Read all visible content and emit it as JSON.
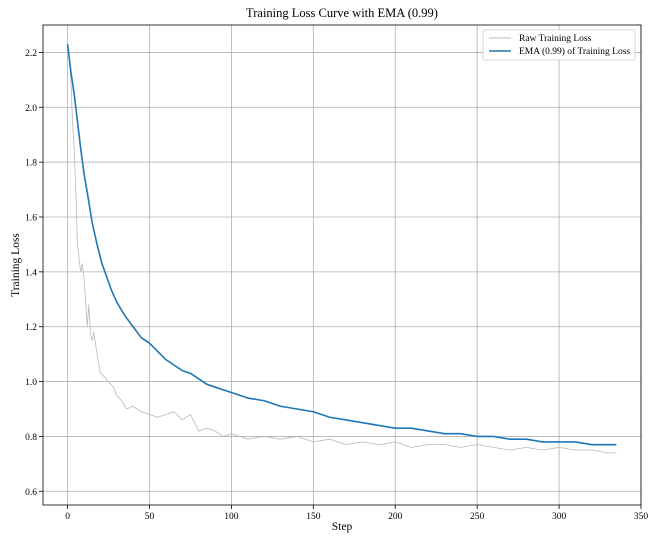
{
  "chart_data": {
    "type": "line",
    "title": "Training Loss Curve with EMA (0.99)",
    "xlabel": "Step",
    "ylabel": "Training Loss",
    "xlim": [
      -15,
      350
    ],
    "ylim": [
      0.55,
      2.3
    ],
    "xticks": [
      0,
      50,
      100,
      150,
      200,
      250,
      300,
      350
    ],
    "xtick_labels": [
      "0",
      "50",
      "100",
      "150",
      "200",
      "250",
      "300",
      "350"
    ],
    "yticks": [
      0.6,
      0.8,
      1.0,
      1.2,
      1.4,
      1.6,
      1.8,
      2.0,
      2.2
    ],
    "ytick_labels": [
      "0.6",
      "0.8",
      "1.0",
      "1.2",
      "1.4",
      "1.6",
      "1.8",
      "2.0",
      "2.2"
    ],
    "grid": true,
    "legend_position": "top-right",
    "series": [
      {
        "name": "Raw Training Loss",
        "color": "#b8b8b8",
        "x": [
          0,
          1,
          2,
          3,
          4,
          5,
          6,
          7,
          8,
          9,
          10,
          11,
          12,
          13,
          14,
          15,
          16,
          18,
          20,
          22,
          25,
          28,
          30,
          33,
          36,
          40,
          45,
          50,
          55,
          60,
          65,
          70,
          75,
          80,
          85,
          90,
          95,
          100,
          110,
          120,
          130,
          140,
          150,
          160,
          170,
          180,
          190,
          200,
          210,
          220,
          230,
          240,
          250,
          260,
          270,
          280,
          290,
          300,
          310,
          320,
          330,
          335
        ],
        "values": [
          2.23,
          2.18,
          2.1,
          1.95,
          1.85,
          1.7,
          1.5,
          1.45,
          1.4,
          1.43,
          1.38,
          1.3,
          1.2,
          1.28,
          1.17,
          1.15,
          1.18,
          1.1,
          1.03,
          1.02,
          1.0,
          0.98,
          0.95,
          0.93,
          0.9,
          0.91,
          0.89,
          0.88,
          0.87,
          0.88,
          0.89,
          0.86,
          0.88,
          0.82,
          0.83,
          0.82,
          0.8,
          0.81,
          0.79,
          0.8,
          0.79,
          0.8,
          0.78,
          0.79,
          0.77,
          0.78,
          0.77,
          0.78,
          0.76,
          0.77,
          0.77,
          0.76,
          0.77,
          0.76,
          0.75,
          0.76,
          0.75,
          0.76,
          0.75,
          0.75,
          0.74,
          0.74
        ]
      },
      {
        "name": "EMA (0.99) of Training Loss",
        "color": "#1f77b4",
        "x": [
          0,
          2,
          4,
          6,
          8,
          10,
          12,
          15,
          18,
          21,
          24,
          27,
          30,
          35,
          40,
          45,
          50,
          55,
          60,
          65,
          70,
          75,
          80,
          85,
          90,
          100,
          110,
          120,
          130,
          140,
          150,
          160,
          170,
          180,
          190,
          200,
          210,
          220,
          230,
          240,
          250,
          260,
          270,
          280,
          290,
          300,
          310,
          320,
          330,
          335
        ],
        "values": [
          2.23,
          2.13,
          2.05,
          1.95,
          1.85,
          1.76,
          1.69,
          1.58,
          1.5,
          1.43,
          1.38,
          1.33,
          1.29,
          1.24,
          1.2,
          1.16,
          1.14,
          1.11,
          1.08,
          1.06,
          1.04,
          1.03,
          1.01,
          0.99,
          0.98,
          0.96,
          0.94,
          0.93,
          0.91,
          0.9,
          0.89,
          0.87,
          0.86,
          0.85,
          0.84,
          0.83,
          0.83,
          0.82,
          0.81,
          0.81,
          0.8,
          0.8,
          0.79,
          0.79,
          0.78,
          0.78,
          0.78,
          0.77,
          0.77,
          0.77
        ]
      }
    ]
  }
}
